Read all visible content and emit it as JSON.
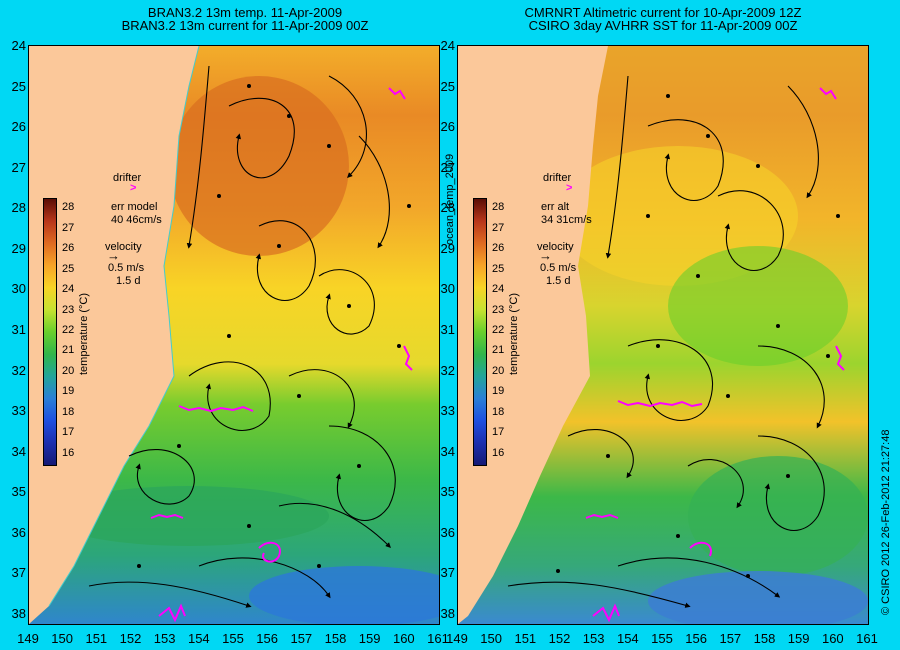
{
  "panels": [
    {
      "title_line1": "BRAN3.2 13m temp. 11-Apr-2009",
      "title_line2": "BRAN3.2 13m current for 11-Apr-2009 00Z",
      "drifter_label": "drifter",
      "err_label": "err model",
      "err_value": "40 46cm/s",
      "velocity_label": "velocity",
      "velocity_scale": "0.5 m/s",
      "velocity_time": "1.5 d"
    },
    {
      "title_line1": "CMRNRT Altimetric current for 10-Apr-2009 12Z",
      "title_line2": "CSIRO 3day AVHRR SST for 11-Apr-2009 00Z",
      "drifter_label": "drifter",
      "err_label": "err alt",
      "err_value": "34 31cm/s",
      "velocity_label": "velocity",
      "velocity_scale": "0.5 m/s",
      "velocity_time": "1.5 d"
    }
  ],
  "colorbar": {
    "label": "temperature (°C)",
    "ticks": [
      "28",
      "27",
      "26",
      "25",
      "24",
      "23",
      "22",
      "21",
      "20",
      "19",
      "18",
      "17",
      "16"
    ],
    "colors": [
      "#5a0d05",
      "#b8361b",
      "#df6b22",
      "#f7a428",
      "#f8d426",
      "#c6e231",
      "#6acf2c",
      "#31b64a",
      "#22a59a",
      "#2a7fd6",
      "#1e4fe0",
      "#1c2fae",
      "#151a75"
    ]
  },
  "latitudes": [
    "24",
    "25",
    "26",
    "27",
    "28",
    "29",
    "30",
    "31",
    "32",
    "33",
    "34",
    "35",
    "36",
    "37",
    "38"
  ],
  "longitudes": [
    "149",
    "150",
    "151",
    "152",
    "153",
    "154",
    "155",
    "156",
    "157",
    "158",
    "159",
    "160",
    "161"
  ],
  "side_label": "ocean_temp_2009",
  "copyright": "© CSIRO 2012   26-Feb-2012 21:27:48",
  "colors": {
    "background": "#00d8f4",
    "land": "#fbc89a",
    "drifter": "#ff00ff"
  }
}
